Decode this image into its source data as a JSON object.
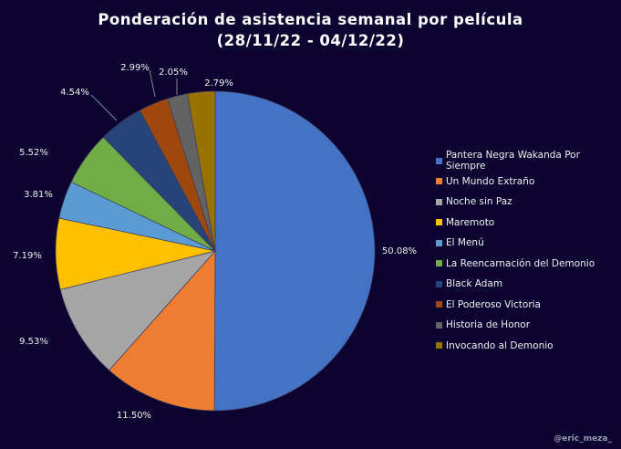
{
  "chart_data": {
    "type": "pie",
    "title": "Ponderación de asistencia semanal por película",
    "subtitle": "(28/11/22 - 04/12/22)",
    "categories": [
      "Pantera Negra Wakanda Por Siempre",
      "Un Mundo Extraño",
      "Noche sin Paz",
      "Maremoto",
      "El Menú",
      "La Reencarnación del Demonio",
      "Black Adam",
      "El Poderoso Victoria",
      "Historia de Honor",
      "Invocando al Demonio"
    ],
    "values": [
      50.08,
      11.5,
      9.53,
      7.19,
      3.81,
      5.52,
      4.54,
      2.99,
      2.05,
      2.79
    ],
    "labels": [
      "50.08%",
      "11.50%",
      "9.53%",
      "7.19%",
      "3.81%",
      "5.52%",
      "4.54%",
      "2.99%",
      "2.05%",
      "2.79%"
    ],
    "colors": [
      "#4472C4",
      "#ED7D31",
      "#A5A5A5",
      "#FFC000",
      "#5B9BD5",
      "#70AD47",
      "#264478",
      "#9E480E",
      "#636363",
      "#997300"
    ],
    "legend_position": "right"
  },
  "watermark": "@eric_meza_"
}
